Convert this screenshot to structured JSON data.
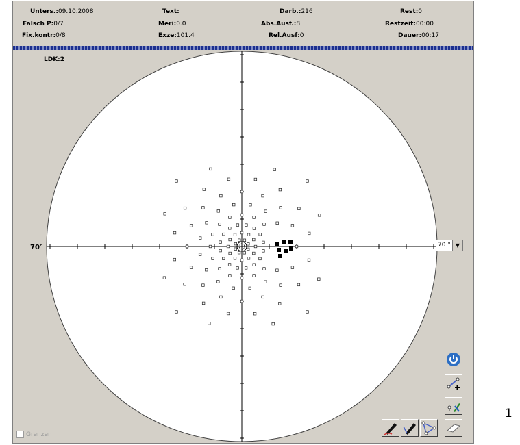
{
  "stats": {
    "col1": [
      {
        "key": "Unters.:",
        "val": "09.10.2008"
      },
      {
        "key": "Falsch P:",
        "val": "0/7"
      },
      {
        "key": "Fix.kontr:",
        "val": "0/8"
      }
    ],
    "col2": [
      {
        "key": "Text:",
        "val": ""
      },
      {
        "key": "Meri:",
        "val": "0.0"
      },
      {
        "key": "Exze:",
        "val": "101.4"
      }
    ],
    "col3": [
      {
        "key": "Darb.:",
        "val": "216"
      },
      {
        "key": "Abs.Ausf.:",
        "val": "8"
      },
      {
        "key": "Rel.Ausf:",
        "val": "0"
      }
    ],
    "col4": [
      {
        "key": "Rest:",
        "val": "0"
      },
      {
        "key": "Restzeit:",
        "val": "00:00"
      },
      {
        "key": "Dauer:",
        "val": "00:17"
      }
    ]
  },
  "ldk_label": "LDK:2",
  "axis_label_left": "70°",
  "zoom": {
    "value": "70 °",
    "arrow": "▼"
  },
  "grenzen_label": "Grenzen",
  "callout_label": "1",
  "colors": {
    "panel": "#d4d0c8",
    "progress": "#1c2f8f",
    "power_button": "#2d6fc4"
  },
  "icons": [
    "power-icon",
    "add-point-icon",
    "edit-point-icon",
    "pen-icon",
    "pen-line-icon",
    "pen-polygon-icon",
    "eraser-icon"
  ]
}
